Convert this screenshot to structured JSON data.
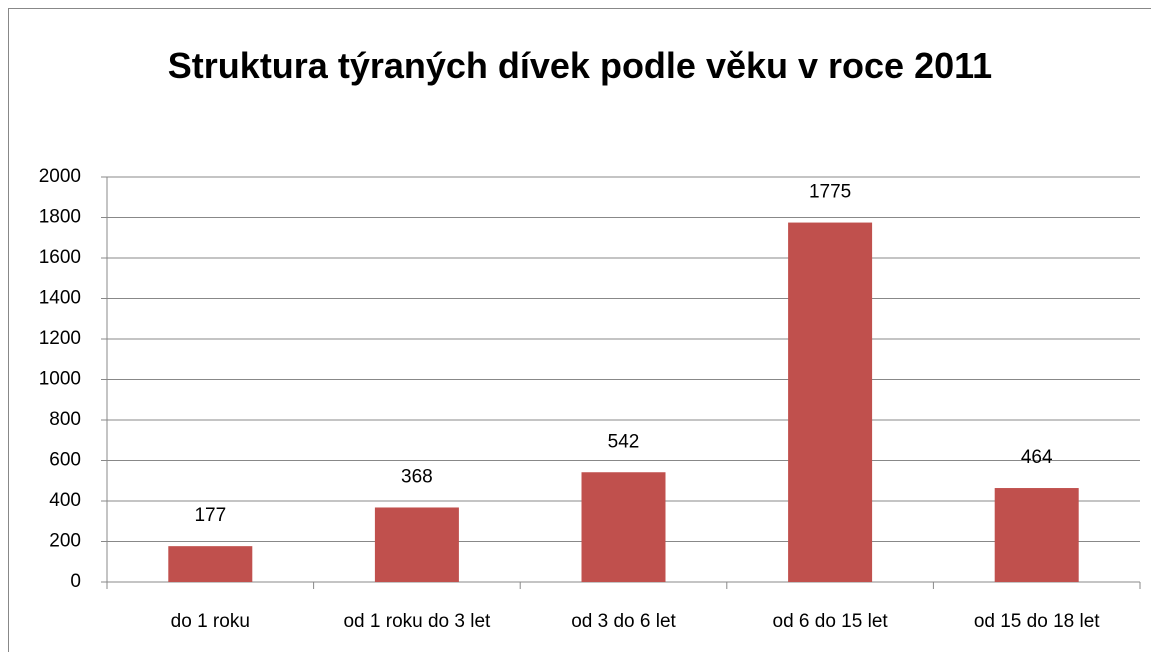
{
  "chart_data": {
    "type": "bar",
    "title": "Struktura týraných dívek podle věku v roce 2011",
    "categories": [
      "do 1 roku",
      "od 1 roku do 3 let",
      "od 3 do 6 let",
      "od 6 do 15 let",
      "od 15 do 18 let"
    ],
    "values": [
      177,
      368,
      542,
      1775,
      464
    ],
    "color": "#c0504d",
    "ylim": [
      0,
      2000
    ],
    "yticks": [
      0,
      200,
      400,
      600,
      800,
      1000,
      1200,
      1400,
      1600,
      1800,
      2000
    ],
    "grid": true
  }
}
